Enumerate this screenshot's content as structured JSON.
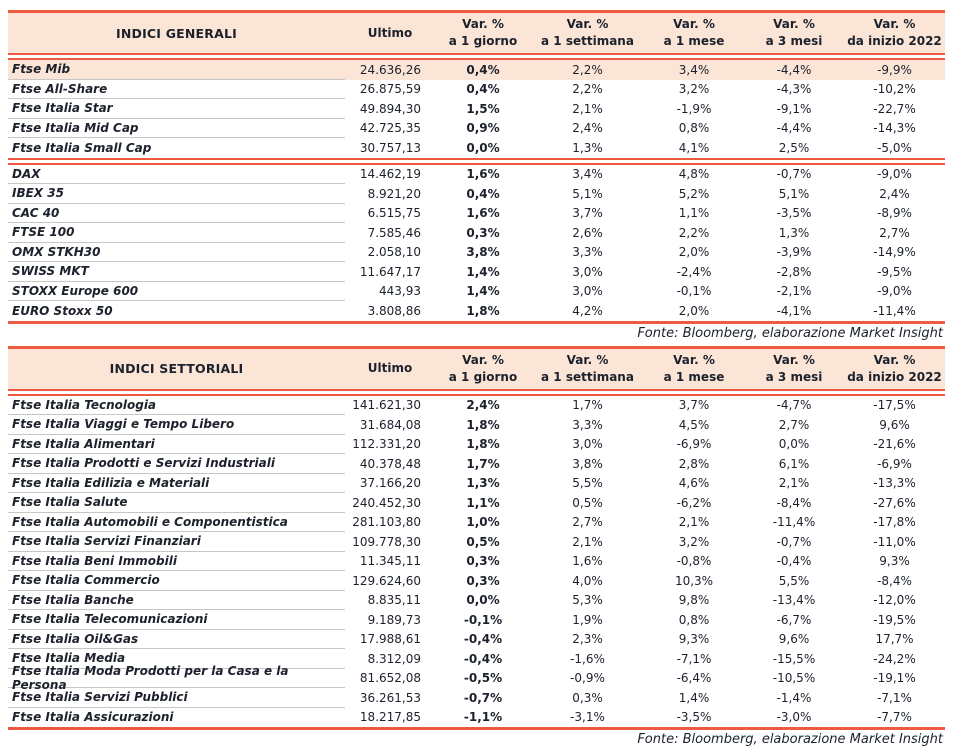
{
  "colors": {
    "accent_line": "#ee5a41",
    "header_bg": "#fbe5d6",
    "highlight_row_bg": "#fbe5d6",
    "row_divider": "#c6c6c6",
    "text": "#1c212c"
  },
  "source_note": "Fonte: Bloomberg, elaborazione Market Insight",
  "tables": [
    {
      "title": "INDICI GENERALI",
      "highlight_first_row": true,
      "columns": [
        {
          "line1": "Ultimo",
          "line2": ""
        },
        {
          "line1": "Var. %",
          "line2": "a 1 giorno"
        },
        {
          "line1": "Var. %",
          "line2": "a 1 settimana"
        },
        {
          "line1": "Var. %",
          "line2": "a 1 mese"
        },
        {
          "line1": "Var. %",
          "line2": "a 3 mesi"
        },
        {
          "line1": "Var. %",
          "line2": "da inizio 2022"
        }
      ],
      "groups": [
        {
          "rows": [
            {
              "name": "Ftse Mib",
              "ultimo": "24.636,26",
              "vars": [
                "0,4%",
                "2,2%",
                "3,4%",
                "-4,4%",
                "-9,9%"
              ]
            },
            {
              "name": "Ftse All-Share",
              "ultimo": "26.875,59",
              "vars": [
                "0,4%",
                "2,2%",
                "3,2%",
                "-4,3%",
                "-10,2%"
              ]
            },
            {
              "name": "Ftse Italia Star",
              "ultimo": "49.894,30",
              "vars": [
                "1,5%",
                "2,1%",
                "-1,9%",
                "-9,1%",
                "-22,7%"
              ]
            },
            {
              "name": "Ftse Italia Mid Cap",
              "ultimo": "42.725,35",
              "vars": [
                "0,9%",
                "2,4%",
                "0,8%",
                "-4,4%",
                "-14,3%"
              ]
            },
            {
              "name": "Ftse Italia Small Cap",
              "ultimo": "30.757,13",
              "vars": [
                "0,0%",
                "1,3%",
                "4,1%",
                "2,5%",
                "-5,0%"
              ]
            }
          ]
        },
        {
          "rows": [
            {
              "name": "DAX",
              "ultimo": "14.462,19",
              "vars": [
                "1,6%",
                "3,4%",
                "4,8%",
                "-0,7%",
                "-9,0%"
              ]
            },
            {
              "name": "IBEX 35",
              "ultimo": "8.921,20",
              "vars": [
                "0,4%",
                "5,1%",
                "5,2%",
                "5,1%",
                "2,4%"
              ]
            },
            {
              "name": "CAC 40",
              "ultimo": "6.515,75",
              "vars": [
                "1,6%",
                "3,7%",
                "1,1%",
                "-3,5%",
                "-8,9%"
              ]
            },
            {
              "name": "FTSE 100",
              "ultimo": "7.585,46",
              "vars": [
                "0,3%",
                "2,6%",
                "2,2%",
                "1,3%",
                "2,7%"
              ]
            },
            {
              "name": "OMX STKH30",
              "ultimo": "2.058,10",
              "vars": [
                "3,8%",
                "3,3%",
                "2,0%",
                "-3,9%",
                "-14,9%"
              ]
            },
            {
              "name": "SWISS MKT",
              "ultimo": "11.647,17",
              "vars": [
                "1,4%",
                "3,0%",
                "-2,4%",
                "-2,8%",
                "-9,5%"
              ]
            },
            {
              "name": "STOXX Europe 600",
              "ultimo": "443,93",
              "vars": [
                "1,4%",
                "3,0%",
                "-0,1%",
                "-2,1%",
                "-9,0%"
              ]
            },
            {
              "name": "EURO Stoxx 50",
              "ultimo": "3.808,86",
              "vars": [
                "1,8%",
                "4,2%",
                "2,0%",
                "-4,1%",
                "-11,4%"
              ]
            }
          ]
        }
      ]
    },
    {
      "title": "INDICI SETTORIALI",
      "highlight_first_row": false,
      "columns": [
        {
          "line1": "Ultimo",
          "line2": ""
        },
        {
          "line1": "Var. %",
          "line2": "a 1 giorno"
        },
        {
          "line1": "Var. %",
          "line2": "a 1 settimana"
        },
        {
          "line1": "Var. %",
          "line2": "a 1 mese"
        },
        {
          "line1": "Var. %",
          "line2": "a 3 mesi"
        },
        {
          "line1": "Var. %",
          "line2": "da inizio 2022"
        }
      ],
      "groups": [
        {
          "rows": [
            {
              "name": "Ftse Italia Tecnologia",
              "ultimo": "141.621,30",
              "vars": [
                "2,4%",
                "1,7%",
                "3,7%",
                "-4,7%",
                "-17,5%"
              ]
            },
            {
              "name": "Ftse Italia Viaggi e Tempo Libero",
              "ultimo": "31.684,08",
              "vars": [
                "1,8%",
                "3,3%",
                "4,5%",
                "2,7%",
                "9,6%"
              ]
            },
            {
              "name": "Ftse Italia Alimentari",
              "ultimo": "112.331,20",
              "vars": [
                "1,8%",
                "3,0%",
                "-6,9%",
                "0,0%",
                "-21,6%"
              ]
            },
            {
              "name": "Ftse Italia Prodotti e Servizi Industriali",
              "ultimo": "40.378,48",
              "vars": [
                "1,7%",
                "3,8%",
                "2,8%",
                "6,1%",
                "-6,9%"
              ]
            },
            {
              "name": "Ftse Italia Edilizia e Materiali",
              "ultimo": "37.166,20",
              "vars": [
                "1,3%",
                "5,5%",
                "4,6%",
                "2,1%",
                "-13,3%"
              ]
            },
            {
              "name": "Ftse Italia Salute",
              "ultimo": "240.452,30",
              "vars": [
                "1,1%",
                "0,5%",
                "-6,2%",
                "-8,4%",
                "-27,6%"
              ]
            },
            {
              "name": "Ftse Italia Automobili e Componentistica",
              "ultimo": "281.103,80",
              "vars": [
                "1,0%",
                "2,7%",
                "2,1%",
                "-11,4%",
                "-17,8%"
              ]
            },
            {
              "name": "Ftse Italia Servizi Finanziari",
              "ultimo": "109.778,30",
              "vars": [
                "0,5%",
                "2,1%",
                "3,2%",
                "-0,7%",
                "-11,0%"
              ]
            },
            {
              "name": "Ftse Italia Beni Immobili",
              "ultimo": "11.345,11",
              "vars": [
                "0,3%",
                "1,6%",
                "-0,8%",
                "-0,4%",
                "9,3%"
              ]
            },
            {
              "name": "Ftse Italia Commercio",
              "ultimo": "129.624,60",
              "vars": [
                "0,3%",
                "4,0%",
                "10,3%",
                "5,5%",
                "-8,4%"
              ]
            },
            {
              "name": "Ftse Italia Banche",
              "ultimo": "8.835,11",
              "vars": [
                "0,0%",
                "5,3%",
                "9,8%",
                "-13,4%",
                "-12,0%"
              ]
            },
            {
              "name": "Ftse Italia Telecomunicazioni",
              "ultimo": "9.189,73",
              "vars": [
                "-0,1%",
                "1,9%",
                "0,8%",
                "-6,7%",
                "-19,5%"
              ]
            },
            {
              "name": "Ftse Italia Oil&Gas",
              "ultimo": "17.988,61",
              "vars": [
                "-0,4%",
                "2,3%",
                "9,3%",
                "9,6%",
                "17,7%"
              ]
            },
            {
              "name": "Ftse Italia Media",
              "ultimo": "8.312,09",
              "vars": [
                "-0,4%",
                "-1,6%",
                "-7,1%",
                "-15,5%",
                "-24,2%"
              ]
            },
            {
              "name": "Ftse Italia Moda Prodotti per la Casa e la Persona",
              "ultimo": "81.652,08",
              "vars": [
                "-0,5%",
                "-0,9%",
                "-6,4%",
                "-10,5%",
                "-19,1%"
              ]
            },
            {
              "name": "Ftse Italia Servizi Pubblici",
              "ultimo": "36.261,53",
              "vars": [
                "-0,7%",
                "0,3%",
                "1,4%",
                "-1,4%",
                "-7,1%"
              ]
            },
            {
              "name": "Ftse Italia Assicurazioni",
              "ultimo": "18.217,85",
              "vars": [
                "-1,1%",
                "-3,1%",
                "-3,5%",
                "-3,0%",
                "-7,7%"
              ]
            }
          ]
        }
      ]
    }
  ]
}
